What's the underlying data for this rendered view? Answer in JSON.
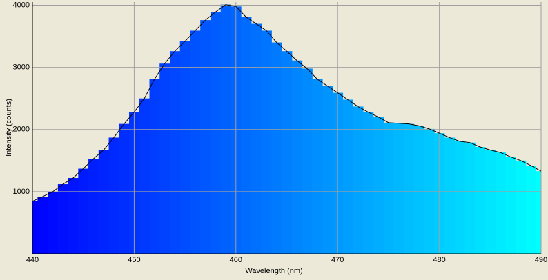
{
  "chart_data": {
    "type": "spectrum",
    "x_label": "Wavelength (nm)",
    "y_label": "Intensity (counts)",
    "x": [
      440,
      441,
      442,
      443,
      444,
      445,
      446,
      447,
      448,
      449,
      450,
      451,
      452,
      453,
      454,
      455,
      456,
      457,
      458,
      459,
      460,
      461,
      462,
      463,
      464,
      465,
      466,
      467,
      468,
      469,
      470,
      471,
      472,
      473,
      474,
      475,
      476,
      477,
      478,
      479,
      480,
      481,
      482,
      483,
      484,
      485,
      486,
      487,
      488,
      489,
      490
    ],
    "series": [
      {
        "color": "#000000",
        "values": [
          845,
          920,
          1000,
          1120,
          1220,
          1370,
          1530,
          1670,
          1870,
          2090,
          2280,
          2500,
          2810,
          3060,
          3260,
          3420,
          3590,
          3760,
          3890,
          4010,
          3980,
          3810,
          3700,
          3590,
          3400,
          3260,
          3110,
          2980,
          2810,
          2700,
          2590,
          2480,
          2370,
          2280,
          2200,
          2110,
          2100,
          2090,
          2060,
          2010,
          1940,
          1870,
          1810,
          1790,
          1720,
          1670,
          1630,
          1560,
          1500,
          1420,
          1330
        ]
      }
    ],
    "fill_colors": [
      "#0000ff",
      "#00ffff"
    ],
    "xlim": [
      440,
      490
    ],
    "xticks": [
      440,
      450,
      460,
      470,
      480,
      490
    ],
    "ylim": [
      0,
      4050
    ],
    "yticks": [
      1000,
      2000,
      3000,
      4000
    ],
    "grid": true
  }
}
